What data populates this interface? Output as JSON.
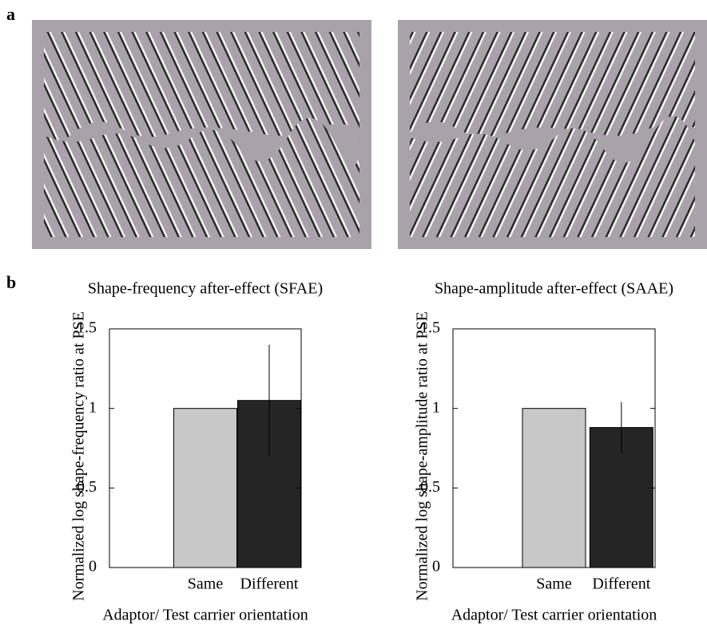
{
  "panel_labels": [
    "a",
    "b"
  ],
  "chart_data": [
    {
      "type": "bar",
      "title": "Shape-frequency after-effect (SFAE)",
      "y_label": "Normalized log shape-frequency ratio at PSE",
      "x_label": "Adaptor/ Test carrier orientation",
      "categories": [
        "Same",
        "Different"
      ],
      "values": [
        1,
        1.05
      ],
      "errors": [
        null,
        0.35
      ],
      "colors": [
        "#c8c8c8",
        "#252525"
      ],
      "ylim": [
        0,
        1.5
      ],
      "yticks": [
        0,
        0.5,
        1,
        1.5
      ]
    },
    {
      "type": "bar",
      "title": "Shape-amplitude after-effect (SAAE)",
      "y_label": "Normalized log shape-amplitude ratio at PSE",
      "x_label": "Adaptor/ Test carrier orientation",
      "categories": [
        "Same",
        "Different"
      ],
      "values": [
        1,
        0.88
      ],
      "errors": [
        null,
        0.16
      ],
      "colors": [
        "#c8c8c8",
        "#252525"
      ],
      "ylim": [
        0,
        1.5
      ],
      "yticks": [
        0,
        0.5,
        1,
        1.5
      ]
    }
  ]
}
